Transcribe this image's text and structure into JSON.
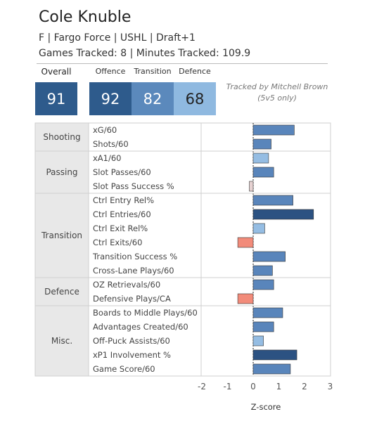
{
  "player": {
    "name": "Cole Knuble",
    "info": "F | Fargo Force | USHL | Draft+1",
    "tracking": "Games Tracked: 8 | Minutes Tracked: 109.9"
  },
  "scores": {
    "overall": {
      "label": "Overall",
      "value": "91"
    },
    "offence": {
      "label": "Offence",
      "value": "92"
    },
    "transition": {
      "label": "Transition",
      "value": "82"
    },
    "defence": {
      "label": "Defence",
      "value": "68"
    }
  },
  "note": {
    "line1": "Tracked by Mitchell Brown",
    "line2": "(5v5 only)"
  },
  "colors": {
    "score_overall": "#2e5b8c",
    "score_offence": "#2e5b8c",
    "score_transition": "#5b89bc",
    "score_defence": "#8fb9e0",
    "bar_dark": "#2c5282",
    "bar_mid": "#5985bb",
    "bar_light": "#95bde3",
    "bar_neutral": "#e6d2d2",
    "bar_negative": "#f28b7a"
  },
  "chart_data": {
    "type": "bar",
    "orientation": "horizontal",
    "xlabel": "Z-score",
    "xlim": [
      -2,
      3
    ],
    "xticks": [
      "-2",
      "-1",
      "0",
      "1",
      "2",
      "3"
    ],
    "groups": [
      {
        "name": "Shooting",
        "metrics": [
          {
            "label": "xG/60",
            "value": 1.6
          },
          {
            "label": "Shots/60",
            "value": 0.7
          }
        ]
      },
      {
        "name": "Passing",
        "metrics": [
          {
            "label": "xA1/60",
            "value": 0.6
          },
          {
            "label": "Slot Passes/60",
            "value": 0.8
          },
          {
            "label": "Slot Pass Success %",
            "value": -0.15
          }
        ]
      },
      {
        "name": "Transition",
        "metrics": [
          {
            "label": "Ctrl Entry Rel%",
            "value": 1.55
          },
          {
            "label": "Ctrl Entries/60",
            "value": 2.35
          },
          {
            "label": "Ctrl Exit Rel%",
            "value": 0.45
          },
          {
            "label": "Ctrl Exits/60",
            "value": -0.6
          },
          {
            "label": "Transition Success %",
            "value": 1.25
          },
          {
            "label": "Cross-Lane Plays/60",
            "value": 0.75
          }
        ]
      },
      {
        "name": "Defence",
        "metrics": [
          {
            "label": "OZ Retrievals/60",
            "value": 0.8
          },
          {
            "label": "Defensive Plays/CA",
            "value": -0.6
          }
        ]
      },
      {
        "name": "Misc.",
        "metrics": [
          {
            "label": "Boards to Middle Plays/60",
            "value": 1.15
          },
          {
            "label": "Advantages Created/60",
            "value": 0.8
          },
          {
            "label": "Off-Puck Assists/60",
            "value": 0.4
          },
          {
            "label": "xP1 Involvement %",
            "value": 1.7
          },
          {
            "label": "Game Score/60",
            "value": 1.45
          }
        ]
      }
    ]
  }
}
